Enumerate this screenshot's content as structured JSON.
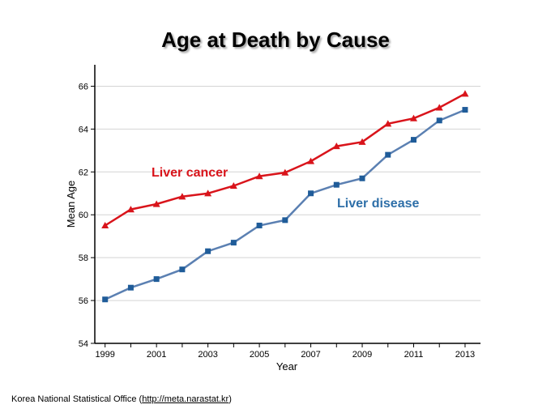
{
  "title": "Age at Death by Cause",
  "source": {
    "prefix": "Korea National Statistical Office (",
    "link_text": "http://meta.narastat.kr",
    "suffix": ")"
  },
  "chart_data": {
    "type": "line",
    "title": "Age at Death by Cause",
    "xlabel": "Year",
    "ylabel": "Mean Age",
    "ylim": [
      54,
      67
    ],
    "xlim": [
      1998.6,
      2013.6
    ],
    "yticks": [
      54,
      56,
      58,
      60,
      62,
      64,
      66
    ],
    "xticks": [
      1999,
      2001,
      2003,
      2005,
      2007,
      2009,
      2011,
      2013
    ],
    "grid": true,
    "x": [
      1999,
      2000,
      2001,
      2002,
      2003,
      2004,
      2005,
      2006,
      2007,
      2008,
      2009,
      2010,
      2011,
      2012,
      2013
    ],
    "series": [
      {
        "name": "Liver cancer",
        "color": "#d9141b",
        "marker": "triangle",
        "values": [
          59.5,
          60.25,
          60.5,
          60.85,
          61.0,
          61.35,
          61.8,
          61.97,
          62.5,
          63.2,
          63.4,
          64.25,
          64.5,
          65.0,
          65.65
        ]
      },
      {
        "name": "Liver disease",
        "color": "#1f5c99",
        "line_color": "#5b80b2",
        "label_color": "#2e6fa8",
        "marker": "square",
        "values": [
          56.05,
          56.6,
          57.0,
          57.45,
          58.3,
          58.7,
          59.5,
          59.75,
          61.0,
          61.4,
          61.7,
          62.8,
          63.5,
          64.4,
          64.9
        ]
      }
    ]
  }
}
